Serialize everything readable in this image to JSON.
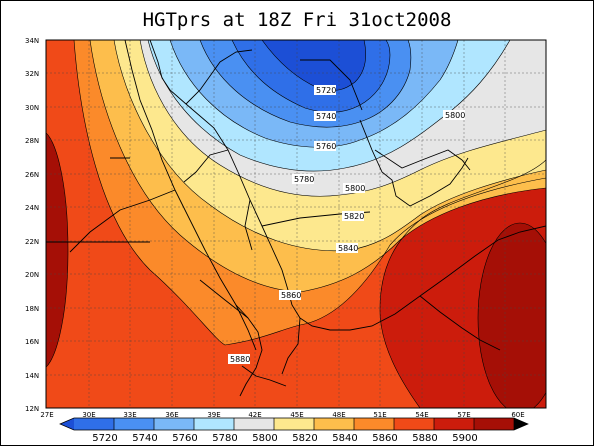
{
  "title": "HGTprs at 18Z Fri 31oct2008",
  "lat_ticks": [
    "34N",
    "32N",
    "30N",
    "28N",
    "26N",
    "24N",
    "22N",
    "20N",
    "18N",
    "16N",
    "14N",
    "12N"
  ],
  "lon_ticks": [
    "27E",
    "30E",
    "33E",
    "36E",
    "39E",
    "42E",
    "45E",
    "48E",
    "51E",
    "54E",
    "57E",
    "60E"
  ],
  "contour_labels": [
    "5720",
    "5740",
    "5760",
    "5780",
    "5800",
    "5800",
    "5820",
    "5840",
    "5860",
    "5880"
  ],
  "colorbar": {
    "labels": [
      "5720",
      "5740",
      "5760",
      "5780",
      "5800",
      "5820",
      "5840",
      "5860",
      "5880",
      "5900"
    ],
    "colors": [
      "#1c4fd6",
      "#2f6fe8",
      "#4a90f2",
      "#7ab8f7",
      "#b0e6ff",
      "#e6e6e6",
      "#fde88e",
      "#fdbe4c",
      "#fb8a2a",
      "#f04a18",
      "#cc1c0c",
      "#a50f06"
    ]
  },
  "field_colors": {
    "c5700": "#1c4fd6",
    "c5720": "#2f6fe8",
    "c5740": "#4a90f2",
    "c5760": "#7ab8f7",
    "c5780": "#b0e6ff",
    "c5800": "#e6e6e6",
    "c5820": "#fde88e",
    "c5840": "#fdbe4c",
    "c5860": "#fb8a2a",
    "c5880": "#f04a18",
    "c5900": "#cc1c0c",
    "c5920": "#a50f06"
  }
}
